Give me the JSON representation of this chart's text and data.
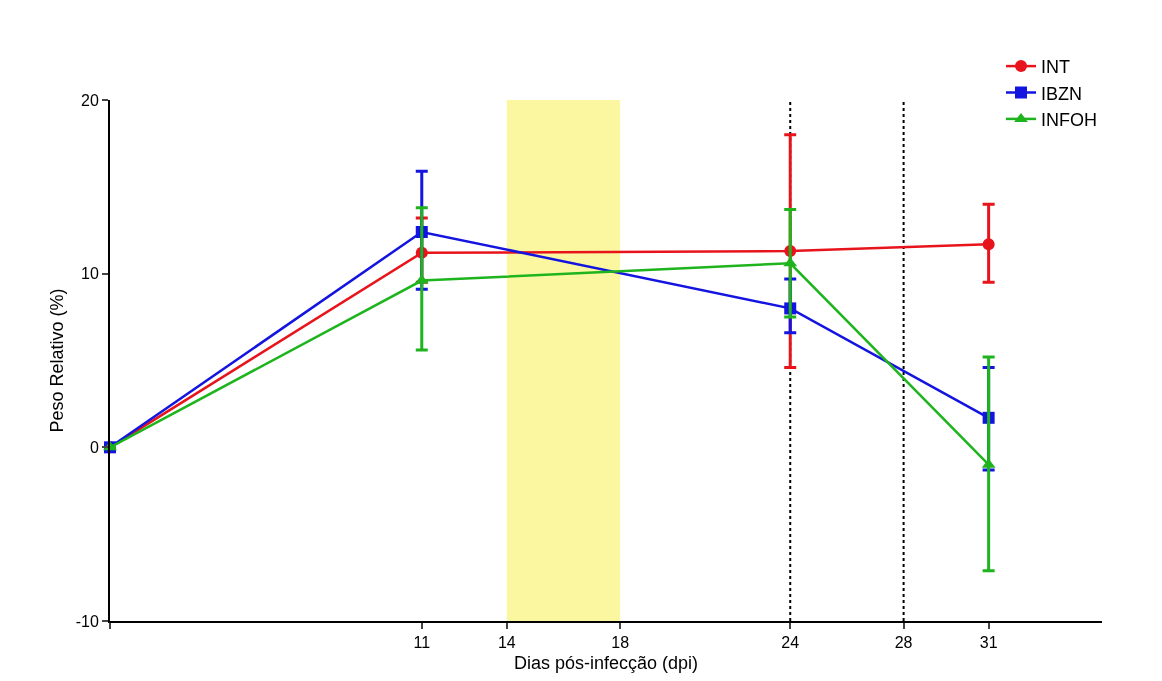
{
  "chart_data": {
    "type": "line",
    "xlabel": "Dias pós-infecção (dpi)",
    "ylabel": "Peso Relativo (%)",
    "x": [
      0,
      11,
      24,
      31
    ],
    "series": [
      {
        "name": "INT",
        "color": "#e8141c",
        "marker": "circle",
        "values": [
          0,
          11.2,
          11.3,
          11.7
        ],
        "errors": [
          null,
          [
            9.5,
            13.2
          ],
          [
            4.6,
            18.0
          ],
          [
            9.5,
            14.0
          ]
        ]
      },
      {
        "name": "IBZN",
        "color": "#1414e0",
        "marker": "square",
        "values": [
          0,
          12.4,
          8.0,
          1.7
        ],
        "errors": [
          null,
          [
            9.1,
            15.9
          ],
          [
            6.6,
            9.7
          ],
          [
            -1.3,
            4.6
          ]
        ]
      },
      {
        "name": "INFOH",
        "color": "#1eb41e",
        "marker": "triangle",
        "values": [
          0,
          9.6,
          10.6,
          -1.0
        ],
        "errors": [
          null,
          [
            5.6,
            13.8
          ],
          [
            7.5,
            13.7
          ],
          [
            -7.1,
            5.2
          ]
        ]
      }
    ],
    "xlim": [
      0,
      35
    ],
    "xticks": [
      {
        "value": 0,
        "label": null
      },
      11,
      14,
      18,
      24,
      28,
      31
    ],
    "ylim": [
      -10,
      20
    ],
    "yticks": [
      -10,
      0,
      10,
      20
    ],
    "bands": [
      {
        "axis": "x",
        "from": 14,
        "to": 18,
        "color": "#fbf7a0"
      }
    ],
    "ref_lines": [
      {
        "axis": "x",
        "value": 24,
        "line_style": "dotted",
        "color": "#000000"
      },
      {
        "axis": "x",
        "value": 28,
        "line_style": "dotted",
        "color": "#000000"
      }
    ],
    "grid": false,
    "legend": "top right",
    "line_style": "solid"
  }
}
